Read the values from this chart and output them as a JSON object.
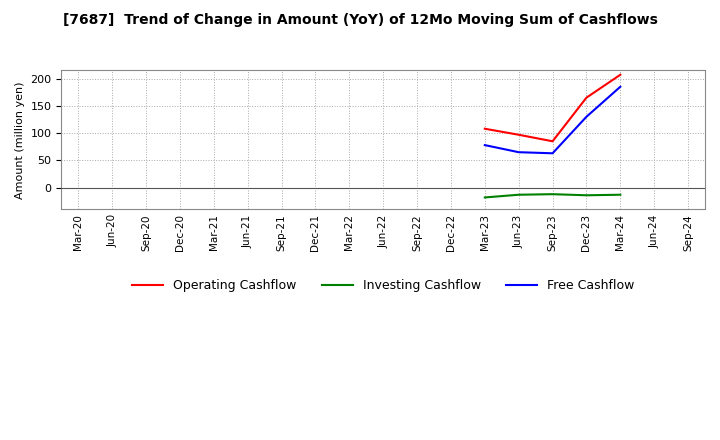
{
  "title": "[7687]  Trend of Change in Amount (YoY) of 12Mo Moving Sum of Cashflows",
  "ylabel": "Amount (million yen)",
  "ylim": [
    -40,
    215
  ],
  "yticks": [
    0,
    50,
    100,
    150,
    200
  ],
  "background_color": "#ffffff",
  "grid_color": "#aaaaaa",
  "x_labels": [
    "Mar-20",
    "Jun-20",
    "Sep-20",
    "Dec-20",
    "Mar-21",
    "Jun-21",
    "Sep-21",
    "Dec-21",
    "Mar-22",
    "Jun-22",
    "Sep-22",
    "Dec-22",
    "Mar-23",
    "Jun-23",
    "Sep-23",
    "Dec-23",
    "Mar-24",
    "Jun-24",
    "Sep-24"
  ],
  "operating": {
    "x_indices": [
      12,
      13,
      14,
      15,
      16
    ],
    "y_values": [
      108,
      97,
      85,
      165,
      207
    ],
    "color": "#ff0000",
    "label": "Operating Cashflow"
  },
  "investing": {
    "x_indices": [
      12,
      13,
      14,
      15,
      16
    ],
    "y_values": [
      -18,
      -13,
      -12,
      -14,
      -13
    ],
    "color": "#008000",
    "label": "Investing Cashflow"
  },
  "free": {
    "x_indices": [
      12,
      13,
      14,
      15,
      16
    ],
    "y_values": [
      78,
      65,
      63,
      130,
      185
    ],
    "color": "#0000ff",
    "label": "Free Cashflow"
  }
}
